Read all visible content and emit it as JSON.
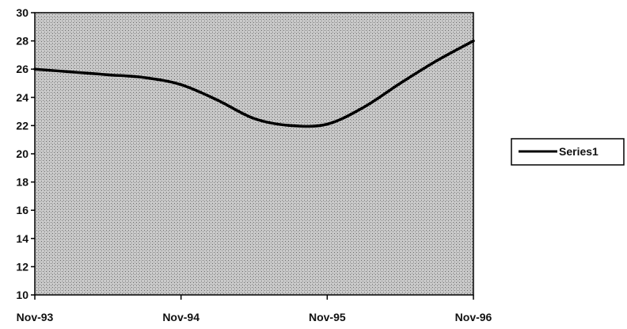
{
  "chart_data": {
    "type": "line",
    "categories": [
      "Nov-93",
      "Nov-94",
      "Nov-95",
      "Nov-96"
    ],
    "x": [
      0,
      1,
      2,
      3
    ],
    "ylim": [
      10,
      30
    ],
    "yticks": [
      10,
      12,
      14,
      16,
      18,
      20,
      22,
      24,
      26,
      28,
      30
    ],
    "series": [
      {
        "name": "Series1",
        "x": [
          0,
          0.25,
          0.5,
          0.75,
          1.0,
          1.25,
          1.5,
          1.75,
          2.0,
          2.25,
          2.5,
          2.75,
          3.0
        ],
        "values": [
          26.0,
          25.8,
          25.6,
          25.4,
          24.9,
          23.8,
          22.5,
          22.0,
          22.1,
          23.3,
          25.0,
          26.6,
          28.0
        ],
        "color": "#000000"
      }
    ],
    "legend_position": "right",
    "grid": false,
    "plot_background": "#c8c8c8"
  }
}
